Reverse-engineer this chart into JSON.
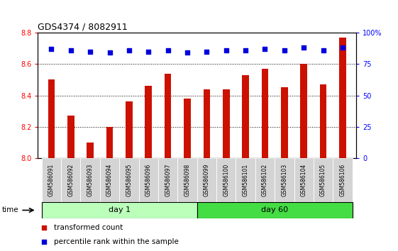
{
  "title": "GDS4374 / 8082911",
  "categories": [
    "GSM586091",
    "GSM586092",
    "GSM586093",
    "GSM586094",
    "GSM586095",
    "GSM586096",
    "GSM586097",
    "GSM586098",
    "GSM586099",
    "GSM586100",
    "GSM586101",
    "GSM586102",
    "GSM586103",
    "GSM586104",
    "GSM586105",
    "GSM586106"
  ],
  "bar_values": [
    8.5,
    8.27,
    8.1,
    8.2,
    8.36,
    8.46,
    8.54,
    8.38,
    8.44,
    8.44,
    8.53,
    8.57,
    8.45,
    8.6,
    8.47,
    8.77
  ],
  "dot_values": [
    87,
    86,
    85,
    84,
    86,
    85,
    86,
    84,
    85,
    86,
    86,
    87,
    86,
    88,
    86,
    88
  ],
  "groups": [
    {
      "label": "day 1",
      "start": 0,
      "end": 8,
      "color": "#bbffbb"
    },
    {
      "label": "day 60",
      "start": 8,
      "end": 16,
      "color": "#44dd44"
    }
  ],
  "ylim_left": [
    8.0,
    8.8
  ],
  "ylim_right": [
    0,
    100
  ],
  "yticks_left": [
    8.0,
    8.2,
    8.4,
    8.6,
    8.8
  ],
  "yticks_right": [
    0,
    25,
    50,
    75,
    100
  ],
  "ytick_labels_right": [
    "0",
    "25",
    "50",
    "75",
    "100%"
  ],
  "bar_color": "#cc1100",
  "dot_color": "#0000dd",
  "bar_bottom": 8.0,
  "legend_items": [
    {
      "label": "transformed count",
      "color": "#cc1100"
    },
    {
      "label": "percentile rank within the sample",
      "color": "#0000dd"
    }
  ],
  "time_label": "time",
  "background_color": "#ffffff",
  "plot_bg_color": "#ffffff",
  "bar_width": 0.35
}
